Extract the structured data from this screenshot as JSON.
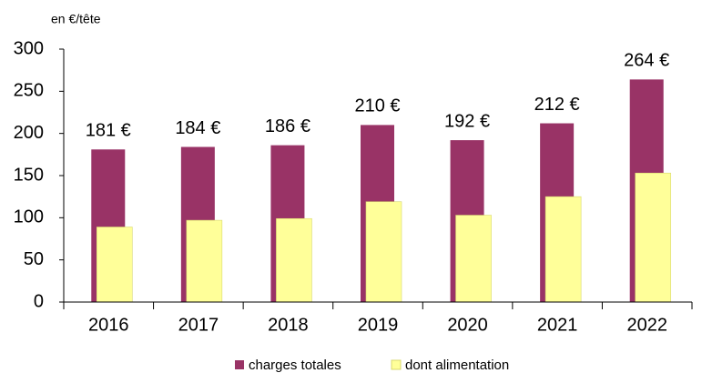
{
  "chart_data": {
    "type": "bar",
    "y_label": "en €/tête",
    "categories": [
      "2016",
      "2017",
      "2018",
      "2019",
      "2020",
      "2021",
      "2022"
    ],
    "series": [
      {
        "name": "charges totales",
        "color": "#993366",
        "values": [
          181,
          184,
          186,
          210,
          192,
          212,
          264
        ],
        "value_labels": [
          "181 €",
          "184 €",
          "186 €",
          "210 €",
          "192 €",
          "212 €",
          "264 €"
        ]
      },
      {
        "name": "dont alimentation",
        "color": "#ffff99",
        "values": [
          89,
          97,
          99,
          119,
          103,
          125,
          153
        ]
      }
    ],
    "ylim": [
      0,
      300
    ],
    "yticks": [
      0,
      50,
      100,
      150,
      200,
      250,
      300
    ],
    "grid": false,
    "legend": "bottom"
  }
}
